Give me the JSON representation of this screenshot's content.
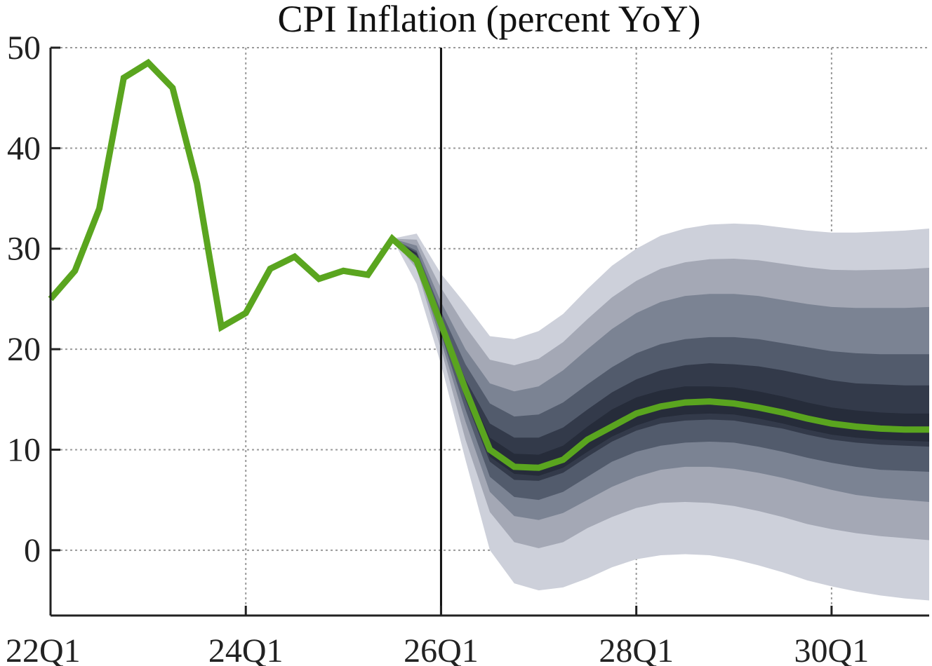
{
  "chart_data": {
    "type": "line",
    "title": "CPI Inflation (percent YoY)",
    "xlabel": "",
    "ylabel": "",
    "x_tick_labels": [
      "22Q1",
      "24Q1",
      "26Q1",
      "28Q1",
      "30Q1"
    ],
    "x_tick_positions": [
      0,
      8,
      16,
      24,
      32
    ],
    "y_tick_labels": [
      "0",
      "10",
      "20",
      "30",
      "40",
      "50"
    ],
    "y_tick_values": [
      0,
      10,
      20,
      30,
      40,
      50
    ],
    "xlim": [
      0,
      36
    ],
    "ylim": [
      -6.5,
      50
    ],
    "grid": true,
    "forecast_start_index": 16,
    "colors": {
      "line": "#5aa51f",
      "fan_90": "#cdd0da",
      "fan_70": "#a4a8b5",
      "fan_50": "#7b8393",
      "fan_30": "#525b6c",
      "fan_10": "#333a4a",
      "vline": "#111111",
      "grid": "#9a9a9a",
      "axis": "#222222"
    },
    "series": [
      {
        "name": "CPI Inflation",
        "x": [
          0,
          1,
          2,
          3,
          4,
          5,
          6,
          7,
          8,
          9,
          10,
          11,
          12,
          13,
          14,
          15,
          16,
          17,
          18,
          19,
          20,
          21,
          22,
          23,
          24,
          25,
          26,
          27,
          28,
          29,
          30,
          31,
          32,
          33,
          34,
          35,
          36
        ],
        "values": [
          25.0,
          27.8,
          34.0,
          47.0,
          48.5,
          46.0,
          36.5,
          22.2,
          23.6,
          28.0,
          29.2,
          27.0,
          27.8,
          27.4,
          31.0,
          28.8,
          22.5,
          16.0,
          10.0,
          8.3,
          8.2,
          9.0,
          11.0,
          12.3,
          13.6,
          14.3,
          14.7,
          14.8,
          14.6,
          14.2,
          13.7,
          13.1,
          12.6,
          12.3,
          12.1,
          12.0,
          12.0
        ]
      }
    ],
    "fan_chart": {
      "x": [
        14,
        15,
        16,
        17,
        18,
        19,
        20,
        21,
        22,
        23,
        24,
        25,
        26,
        27,
        28,
        29,
        30,
        31,
        32,
        33,
        34,
        35,
        36
      ],
      "bands": [
        {
          "name": "90%",
          "lower": [
            31.0,
            26.5,
            18.5,
            9.0,
            0.0,
            -3.3,
            -4.0,
            -3.7,
            -2.8,
            -1.7,
            -0.9,
            -0.5,
            -0.4,
            -0.5,
            -0.9,
            -1.5,
            -2.2,
            -3.0,
            -3.6,
            -4.1,
            -4.5,
            -4.8,
            -5.0
          ],
          "upper": [
            31.0,
            31.5,
            27.5,
            24.5,
            21.3,
            21.0,
            21.8,
            23.5,
            26.0,
            28.3,
            30.0,
            31.3,
            32.0,
            32.4,
            32.5,
            32.4,
            32.1,
            31.8,
            31.6,
            31.6,
            31.7,
            31.8,
            32.0
          ]
        },
        {
          "name": "70%",
          "lower": [
            31.0,
            28.0,
            20.0,
            11.0,
            3.8,
            0.8,
            0.2,
            0.8,
            2.2,
            3.3,
            4.2,
            4.7,
            4.8,
            4.7,
            4.4,
            3.9,
            3.3,
            2.6,
            2.1,
            1.7,
            1.4,
            1.2,
            1.0
          ]
        },
        {
          "name": "50%",
          "lower": [
            31.0,
            28.5,
            20.8,
            12.8,
            5.8,
            3.4,
            3.0,
            3.7,
            5.0,
            6.3,
            7.3,
            8.0,
            8.3,
            8.3,
            8.1,
            7.7,
            7.2,
            6.6,
            6.0,
            5.5,
            5.2,
            5.0,
            4.8
          ],
          "upper": [
            31.0,
            30.3,
            24.7,
            20.0,
            16.6,
            15.8,
            16.3,
            17.9,
            20.0,
            22.0,
            23.6,
            24.7,
            25.3,
            25.5,
            25.5,
            25.3,
            24.9,
            24.5,
            24.2,
            24.1,
            24.1,
            24.1,
            24.2
          ]
        },
        {
          "name": "30%",
          "lower": [
            31.0,
            29.0,
            21.5,
            14.0,
            7.3,
            5.3,
            5.0,
            5.8,
            7.3,
            8.8,
            9.8,
            10.4,
            10.7,
            10.8,
            10.7,
            10.3,
            9.8,
            9.2,
            8.7,
            8.3,
            8.0,
            7.9,
            7.8
          ],
          "upper": [
            31.0,
            29.8,
            23.8,
            18.5,
            14.6,
            13.3,
            13.5,
            14.7,
            16.5,
            18.2,
            19.6,
            20.5,
            21.0,
            21.2,
            21.2,
            21.0,
            20.6,
            20.2,
            19.8,
            19.6,
            19.5,
            19.5,
            19.5
          ]
        },
        {
          "name": "10%",
          "lower": [
            31.0,
            29.3,
            22.2,
            15.0,
            8.8,
            7.0,
            6.9,
            7.7,
            9.3,
            10.8,
            11.9,
            12.6,
            12.9,
            13.0,
            12.9,
            12.5,
            12.1,
            11.5,
            11.0,
            10.7,
            10.5,
            10.4,
            10.3
          ],
          "upper": [
            31.0,
            29.6,
            23.0,
            17.0,
            12.6,
            11.2,
            11.2,
            12.2,
            14.0,
            15.7,
            17.0,
            17.9,
            18.4,
            18.6,
            18.5,
            18.3,
            17.9,
            17.4,
            16.9,
            16.6,
            16.5,
            16.4,
            16.4
          ]
        },
        {
          "name": "core",
          "lower": [
            31.0,
            29.4,
            22.4,
            15.6,
            9.3,
            7.6,
            7.4,
            8.2,
            9.8,
            11.3,
            12.4,
            13.2,
            13.5,
            13.6,
            13.5,
            13.1,
            12.6,
            12.0,
            11.5,
            11.2,
            11.0,
            10.9,
            10.8
          ],
          "upper": [
            31.0,
            29.5,
            22.8,
            16.6,
            11.2,
            9.6,
            9.5,
            10.4,
            12.3,
            14.0,
            15.2,
            15.9,
            16.3,
            16.3,
            16.2,
            15.8,
            15.3,
            14.7,
            14.2,
            13.9,
            13.7,
            13.6,
            13.6
          ]
        }
      ]
    }
  }
}
